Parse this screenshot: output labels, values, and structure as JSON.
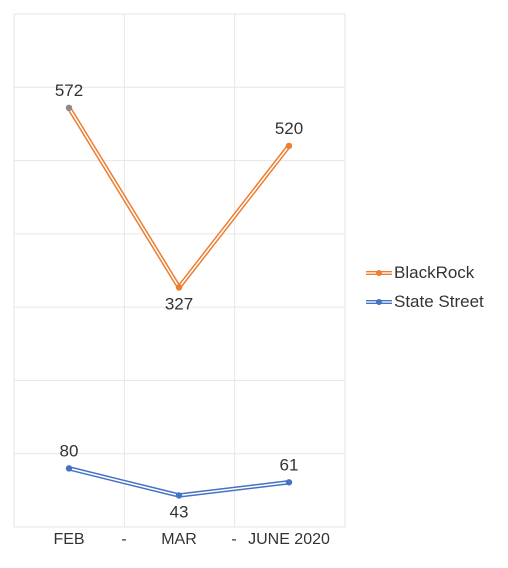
{
  "chart_data": {
    "type": "line",
    "categories": [
      "FEB",
      "-",
      "MAR",
      "-",
      "JUNE 2020"
    ],
    "x_positions": [
      0,
      1,
      2,
      3,
      4
    ],
    "series": [
      {
        "name": "BlackRock",
        "color": "#ED7D31",
        "points": [
          [
            0,
            572
          ],
          [
            2,
            327
          ],
          [
            4,
            520
          ]
        ]
      },
      {
        "name": "State Street",
        "color": "#4472C4",
        "points": [
          [
            0,
            80
          ],
          [
            2,
            43
          ],
          [
            4,
            61
          ]
        ]
      }
    ],
    "ylim": [
      0,
      700
    ],
    "grid": true,
    "legend_position": "right",
    "data_labels": true
  }
}
